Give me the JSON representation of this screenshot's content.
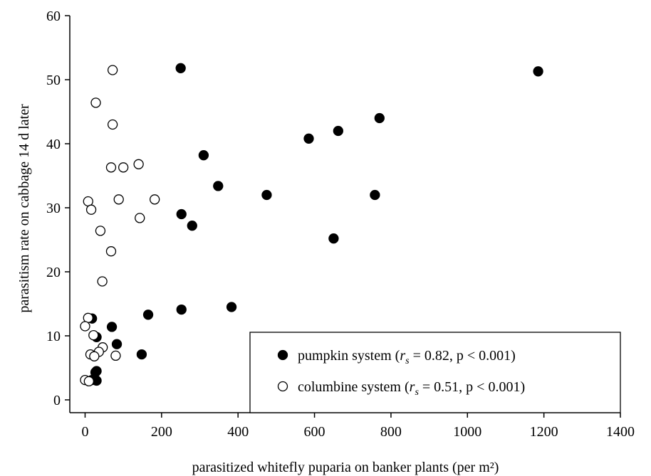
{
  "chart_data": {
    "type": "scatter",
    "xlabel": "parasitized whitefly puparia on banker plants (per m²)",
    "ylabel": "parasitism rate on cabbage 14 d later",
    "xlim": [
      -40,
      1400
    ],
    "ylim": [
      -2,
      60
    ],
    "xticks": [
      0,
      200,
      400,
      600,
      800,
      1000,
      1200,
      1400
    ],
    "yticks": [
      0,
      10,
      20,
      30,
      40,
      50,
      60
    ],
    "grid": false,
    "legend_position": "bottom-right",
    "series": [
      {
        "name": "pumpkin system",
        "legend_parts": [
          "pumpkin system (",
          "r",
          "s",
          " = 0.82, p < 0.001)"
        ],
        "marker": "filled-circle",
        "color": "#000000",
        "points": [
          [
            250,
            51.8
          ],
          [
            1185,
            51.3
          ],
          [
            770,
            44.0
          ],
          [
            662,
            42.0
          ],
          [
            585,
            40.8
          ],
          [
            310,
            38.2
          ],
          [
            348,
            33.4
          ],
          [
            475,
            32.0
          ],
          [
            758,
            32.0
          ],
          [
            252,
            29.0
          ],
          [
            280,
            27.2
          ],
          [
            650,
            25.2
          ],
          [
            383,
            14.5
          ],
          [
            252,
            14.1
          ],
          [
            165,
            13.3
          ],
          [
            18,
            12.7
          ],
          [
            70,
            11.4
          ],
          [
            30,
            9.8
          ],
          [
            83,
            8.7
          ],
          [
            148,
            7.1
          ],
          [
            30,
            4.5
          ],
          [
            27,
            4.3
          ],
          [
            18,
            3.1
          ],
          [
            30,
            3.0
          ]
        ]
      },
      {
        "name": "columbine system",
        "legend_parts": [
          "columbine system (",
          "r",
          "s",
          " = 0.51, p < 0.001)"
        ],
        "marker": "open-circle",
        "color": "#000000",
        "points": [
          [
            72,
            51.5
          ],
          [
            28,
            46.4
          ],
          [
            72,
            43.0
          ],
          [
            140,
            36.8
          ],
          [
            68,
            36.3
          ],
          [
            100,
            36.3
          ],
          [
            8,
            31.0
          ],
          [
            88,
            31.3
          ],
          [
            182,
            31.3
          ],
          [
            16,
            29.7
          ],
          [
            143,
            28.4
          ],
          [
            40,
            26.4
          ],
          [
            68,
            23.2
          ],
          [
            45,
            18.5
          ],
          [
            8,
            12.8
          ],
          [
            0,
            11.5
          ],
          [
            22,
            10.1
          ],
          [
            46,
            8.2
          ],
          [
            36,
            7.5
          ],
          [
            14,
            7.1
          ],
          [
            24,
            6.8
          ],
          [
            80,
            6.9
          ],
          [
            0,
            3.1
          ],
          [
            10,
            2.9
          ]
        ]
      }
    ]
  }
}
